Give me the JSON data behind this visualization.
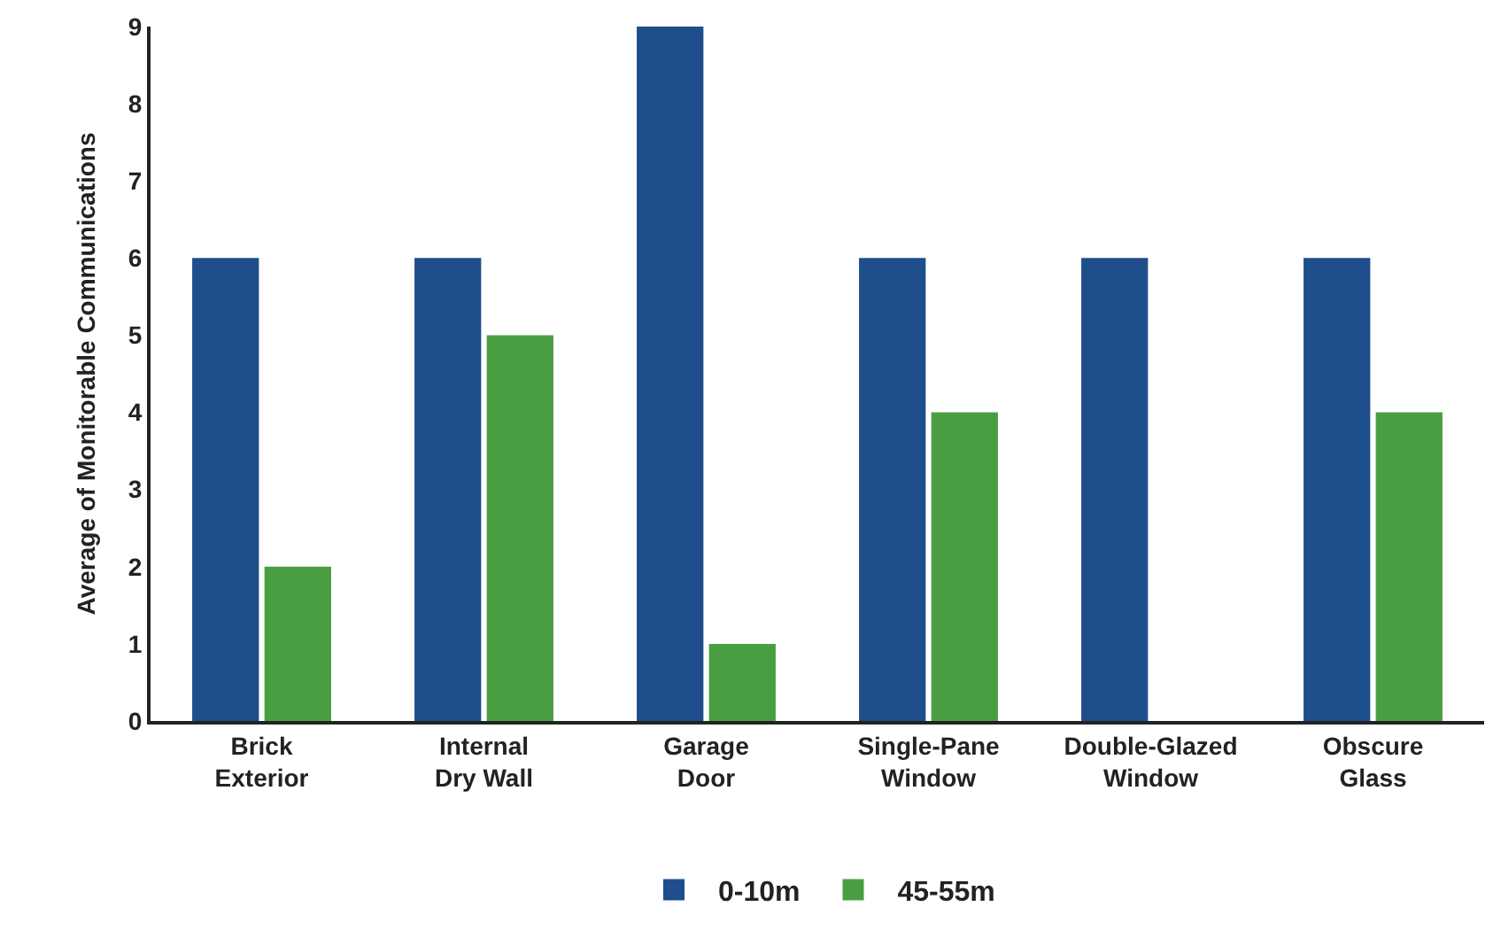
{
  "chart_data": {
    "type": "bar",
    "ylabel": "Average of Monitorable Communications",
    "categories": [
      "Brick\nExterior",
      "Internal\nDry Wall",
      "Garage\nDoor",
      "Single-Pane\nWindow",
      "Double-Glazed\nWindow",
      "Obscure\nGlass"
    ],
    "series": [
      {
        "name": "0-10m",
        "color": "#1f4e8c",
        "values": [
          6,
          6,
          9,
          6,
          6,
          6
        ]
      },
      {
        "name": "45-55m",
        "color": "#4a9e42",
        "values": [
          2,
          5,
          1,
          4,
          0,
          4
        ]
      }
    ],
    "ylim": [
      0,
      9
    ],
    "yticks": [
      0,
      1,
      2,
      3,
      4,
      5,
      6,
      7,
      8,
      9
    ],
    "legend": "bottom"
  }
}
